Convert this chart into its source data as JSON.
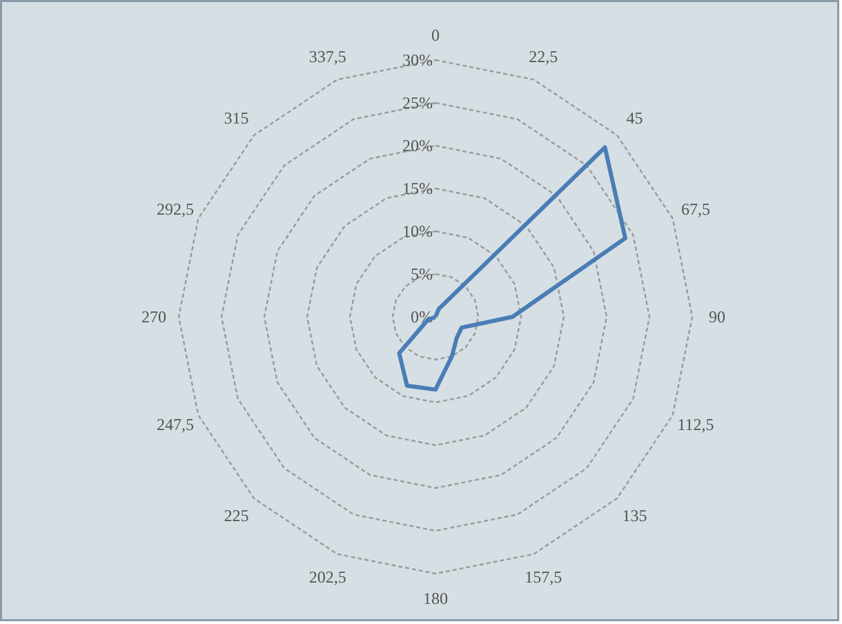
{
  "chart_data": {
    "type": "radar",
    "categories": [
      "0",
      "22,5",
      "45",
      "67,5",
      "90",
      "112,5",
      "135",
      "157,5",
      "180",
      "202,5",
      "225",
      "247,5",
      "270",
      "292,5",
      "315",
      "337,5"
    ],
    "series": [
      {
        "color": "#4a7db5",
        "values": [
          0,
          1,
          28,
          24,
          9,
          3.3,
          3.5,
          5,
          8.5,
          8.7,
          6,
          1,
          0,
          0,
          0,
          0
        ]
      }
    ],
    "ylim": [
      0,
      30
    ],
    "yticks": [
      {
        "value": 0,
        "label": "0%"
      },
      {
        "value": 5,
        "label": "5%"
      },
      {
        "value": 10,
        "label": "10%"
      },
      {
        "value": 15,
        "label": "15%"
      },
      {
        "value": 20,
        "label": "20%"
      },
      {
        "value": 25,
        "label": "25%"
      },
      {
        "value": 30,
        "label": "30%"
      }
    ],
    "grid": true
  }
}
